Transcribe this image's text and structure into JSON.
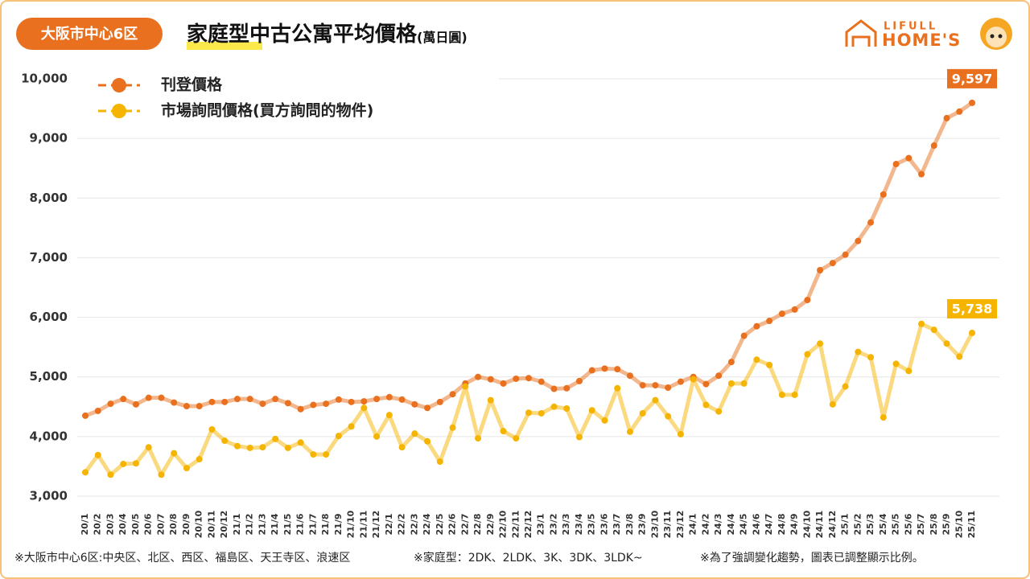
{
  "chart_data": {
    "type": "line",
    "badge": "大阪市中心6区",
    "title": "家庭型中古公寓平均價格",
    "unit": "(萬日圓)",
    "logo": {
      "top": "LIFULL",
      "bottom": "HOME'S"
    },
    "categories": [
      "20/1",
      "20/2",
      "20/3",
      "20/4",
      "20/5",
      "20/6",
      "20/7",
      "20/8",
      "20/9",
      "20/10",
      "20/11",
      "20/12",
      "21/1",
      "21/2",
      "21/3",
      "21/4",
      "21/5",
      "21/6",
      "21/7",
      "21/8",
      "21/9",
      "21/10",
      "21/11",
      "21/12",
      "22/1",
      "22/2",
      "22/3",
      "22/4",
      "22/5",
      "22/6",
      "22/7",
      "22/8",
      "22/9",
      "22/10",
      "22/11",
      "22/12",
      "23/1",
      "23/2",
      "23/3",
      "23/4",
      "23/5",
      "23/6",
      "23/7",
      "23/8",
      "23/9",
      "23/10",
      "23/11",
      "23/12",
      "24/1",
      "24/2",
      "24/3",
      "24/4",
      "24/5",
      "24/6",
      "24/7",
      "24/8",
      "24/9",
      "24/10",
      "24/11",
      "24/12",
      "25/1",
      "25/2",
      "25/3",
      "25/4",
      "25/5",
      "25/6",
      "25/7",
      "25/8",
      "25/9",
      "25/10",
      "25/11"
    ],
    "series": [
      {
        "name": "刊登價格",
        "color": "#e8701e",
        "values": [
          4350,
          4430,
          4550,
          4630,
          4540,
          4650,
          4650,
          4570,
          4510,
          4510,
          4580,
          4580,
          4630,
          4630,
          4550,
          4630,
          4560,
          4460,
          4530,
          4550,
          4620,
          4580,
          4590,
          4630,
          4660,
          4620,
          4540,
          4480,
          4580,
          4710,
          4890,
          5000,
          4960,
          4890,
          4970,
          4980,
          4920,
          4800,
          4810,
          4930,
          5110,
          5140,
          5130,
          5020,
          4860,
          4860,
          4820,
          4920,
          5000,
          4880,
          5020,
          5250,
          5690,
          5850,
          5940,
          6060,
          6130,
          6290,
          6790,
          6910,
          7050,
          7280,
          7590,
          8060,
          8570,
          8670,
          8400,
          8880,
          9340,
          9450,
          9597
        ],
        "value_labels": [
          null,
          null,
          null,
          null,
          null,
          null,
          null,
          null,
          null,
          null,
          null,
          null,
          null,
          null,
          null,
          null,
          null,
          null,
          null,
          null,
          null,
          null,
          null,
          null,
          null,
          null,
          null,
          null,
          null,
          null,
          null,
          null,
          null,
          null,
          null,
          null,
          null,
          null,
          null,
          null,
          null,
          null,
          null,
          null,
          null,
          null,
          null,
          null,
          null,
          null,
          null,
          null,
          null,
          null,
          null,
          null,
          null,
          null,
          null,
          null,
          null,
          null,
          null,
          null,
          null,
          null,
          null,
          null,
          null,
          null,
          "9,597"
        ]
      },
      {
        "name": "市場詢問價格(買方詢問的物件)",
        "color": "#f5b400",
        "values": [
          3400,
          3690,
          3360,
          3540,
          3550,
          3820,
          3360,
          3720,
          3470,
          3620,
          4120,
          3930,
          3840,
          3810,
          3820,
          3960,
          3810,
          3900,
          3700,
          3700,
          4010,
          4170,
          4480,
          4000,
          4360,
          3820,
          4050,
          3920,
          3580,
          4150,
          4840,
          3970,
          4610,
          4090,
          3970,
          4400,
          4390,
          4500,
          4470,
          3990,
          4440,
          4270,
          4810,
          4080,
          4390,
          4610,
          4340,
          4040,
          4960,
          4530,
          4420,
          4890,
          4890,
          5290,
          5200,
          4700,
          4700,
          5380,
          5560,
          4540,
          4840,
          5420,
          5330,
          4320,
          5220,
          5100,
          5890,
          5790,
          5560,
          5340,
          5738
        ],
        "value_labels": [
          null,
          null,
          null,
          null,
          null,
          null,
          null,
          null,
          null,
          null,
          null,
          null,
          null,
          null,
          null,
          null,
          null,
          null,
          null,
          null,
          null,
          null,
          null,
          null,
          null,
          null,
          null,
          null,
          null,
          null,
          null,
          null,
          null,
          null,
          null,
          null,
          null,
          null,
          null,
          null,
          null,
          null,
          null,
          null,
          null,
          null,
          null,
          null,
          null,
          null,
          null,
          null,
          null,
          null,
          null,
          null,
          null,
          null,
          null,
          null,
          null,
          null,
          null,
          null,
          null,
          null,
          null,
          null,
          null,
          null,
          "5,738"
        ]
      }
    ],
    "ylim": [
      3000,
      10000
    ],
    "yticks": [
      {
        "value": 3000,
        "label": "3,000"
      },
      {
        "value": 4000,
        "label": "4,000"
      },
      {
        "value": 5000,
        "label": "5,000"
      },
      {
        "value": 6000,
        "label": "6,000"
      },
      {
        "value": 7000,
        "label": "7,000"
      },
      {
        "value": 8000,
        "label": "8,000"
      },
      {
        "value": 9000,
        "label": "9,000"
      },
      {
        "value": 10000,
        "label": "10,000"
      }
    ],
    "grid": true,
    "legend": "top-left",
    "notes": [
      "※大阪市中心6区:中央区、北区、西区、福島区、天王寺区、浪速区",
      "※家庭型：2DK、2LDK、3K、3DK、3LDK~",
      "※為了強調變化趨勢，圖表已調整顯示比例。"
    ]
  }
}
